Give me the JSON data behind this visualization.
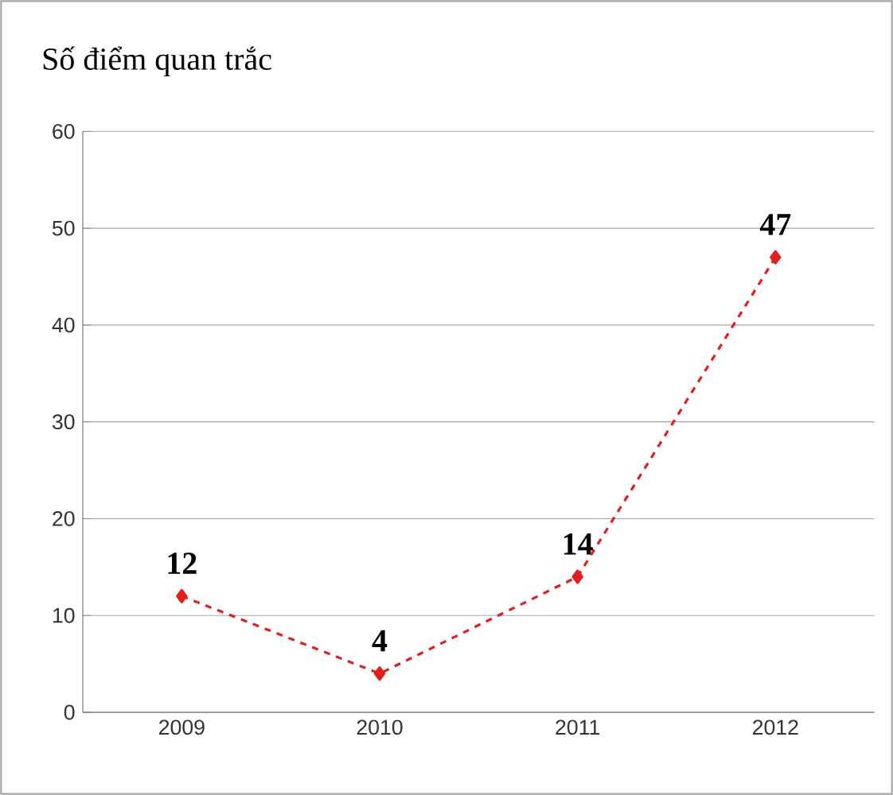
{
  "chart_data": {
    "type": "line",
    "title": "Số điểm quan trắc",
    "categories": [
      "2009",
      "2010",
      "2011",
      "2012"
    ],
    "series": [
      {
        "color": "#e02020",
        "values": [
          12,
          4,
          14,
          47
        ]
      }
    ],
    "ylim": [
      0,
      60
    ],
    "yticks": [
      0,
      10,
      20,
      30,
      40,
      50,
      60
    ],
    "grid": "y",
    "marker": "diamond",
    "line_style": "dashed",
    "data_labels": true
  }
}
